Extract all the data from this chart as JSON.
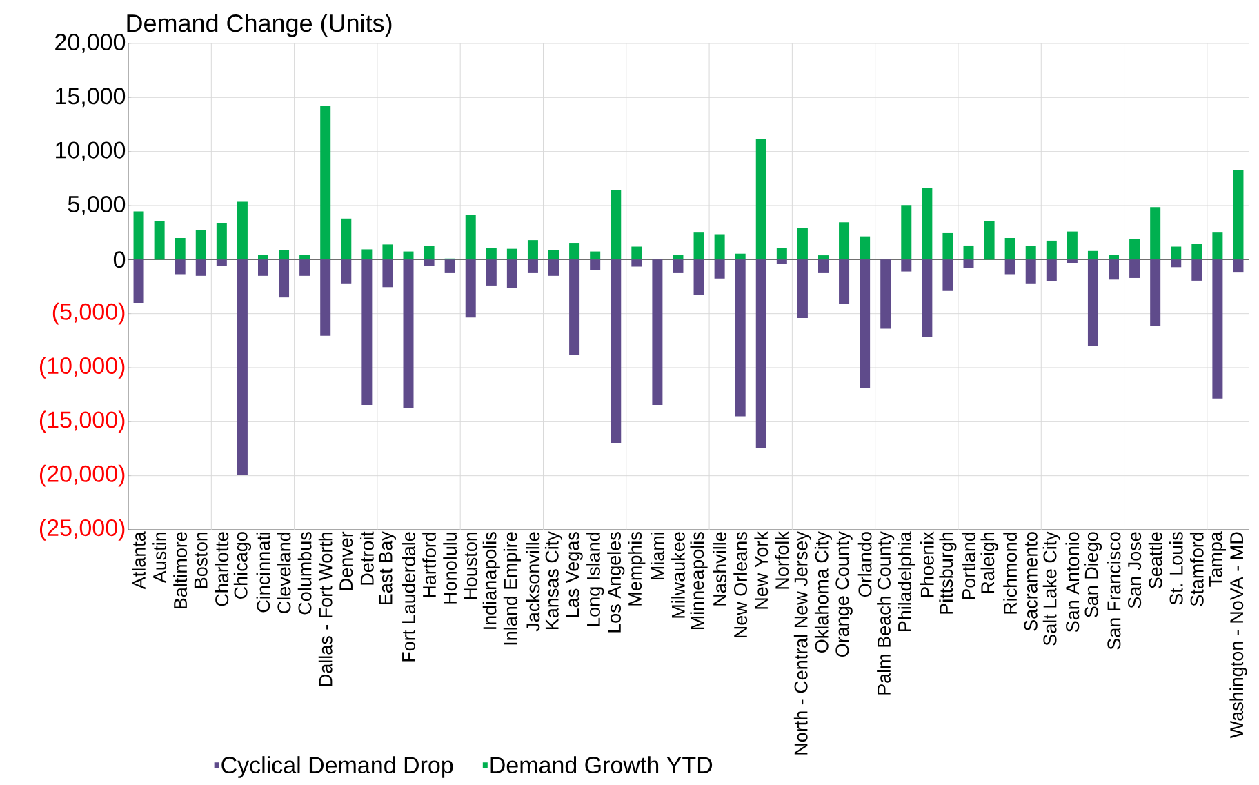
{
  "chart_data": {
    "type": "bar",
    "title": "Demand Change (Units)",
    "categories": [
      "Atlanta",
      "Austin",
      "Baltimore",
      "Boston",
      "Charlotte",
      "Chicago",
      "Cincinnati",
      "Cleveland",
      "Columbus",
      "Dallas - Fort Worth",
      "Denver",
      "Detroit",
      "East Bay",
      "Fort Lauderdale",
      "Hartford",
      "Honolulu",
      "Houston",
      "Indianapolis",
      "Inland Empire",
      "Jacksonville",
      "Kansas City",
      "Las Vegas",
      "Long Island",
      "Los Angeles",
      "Memphis",
      "Miami",
      "Milwaukee",
      "Minneapolis",
      "Nashville",
      "New Orleans",
      "New York",
      "Norfolk",
      "North - Central New Jersey",
      "Oklahoma City",
      "Orange County",
      "Orlando",
      "Palm Beach County",
      "Philadelphia",
      "Phoenix",
      "Pittsburgh",
      "Portland",
      "Raleigh",
      "Richmond",
      "Sacramento",
      "Salt Lake City",
      "San Antonio",
      "San Diego",
      "San Francisco",
      "San Jose",
      "Seattle",
      "St. Louis",
      "Stamford",
      "Tampa",
      "Washington - NoVA - MD"
    ],
    "series": [
      {
        "name": "Cyclical Demand Drop",
        "color": "#5f4b8b",
        "values": [
          -4000,
          0,
          -1350,
          -1500,
          -600,
          -19900,
          -1500,
          -3500,
          -1500,
          -7050,
          -2200,
          -13450,
          -2550,
          -13750,
          -600,
          -1250,
          -5350,
          -2400,
          -2600,
          -1250,
          -1500,
          -8850,
          -1000,
          -16950,
          -650,
          -13450,
          -1250,
          -3250,
          -1750,
          -14500,
          -17400,
          -400,
          -5400,
          -1250,
          -4100,
          -11900,
          -6400,
          -1100,
          -7150,
          -2900,
          -800,
          0,
          -1350,
          -2200,
          -2000,
          -300,
          -7950,
          -1850,
          -1700,
          -6100,
          -700,
          -1950,
          -12850,
          -1200
        ]
      },
      {
        "name": "Demand Growth YTD",
        "color": "#00b050",
        "values": [
          4450,
          3550,
          2000,
          2700,
          3400,
          5350,
          450,
          900,
          450,
          14200,
          3800,
          950,
          1400,
          750,
          1250,
          100,
          4100,
          1100,
          1000,
          1800,
          900,
          1550,
          750,
          6400,
          1200,
          0,
          450,
          2500,
          2350,
          550,
          11150,
          1050,
          2900,
          400,
          3450,
          2150,
          0,
          5050,
          6600,
          2450,
          1300,
          3550,
          2000,
          1250,
          1750,
          2600,
          800,
          450,
          1900,
          4850,
          1200,
          1450,
          2500,
          8300
        ]
      }
    ],
    "ylim": [
      -25000,
      20000
    ],
    "yticks": [
      {
        "value": -25000,
        "label": "(25,000)"
      },
      {
        "value": -20000,
        "label": "(20,000)"
      },
      {
        "value": -15000,
        "label": "(15,000)"
      },
      {
        "value": -10000,
        "label": "(10,000)"
      },
      {
        "value": -5000,
        "label": "(5,000)"
      },
      0,
      {
        "value": 5000,
        "label": "5,000"
      },
      {
        "value": 10000,
        "label": "10,000"
      },
      {
        "value": 15000,
        "label": "15,000"
      },
      {
        "value": 20000,
        "label": "20,000"
      }
    ],
    "grid": true,
    "legend": "bottom",
    "stacked": true
  }
}
